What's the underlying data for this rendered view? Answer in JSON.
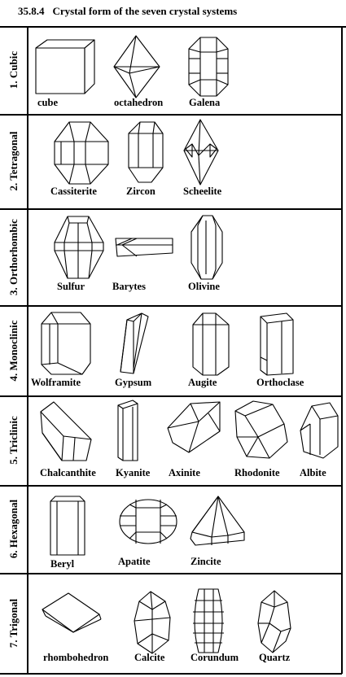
{
  "heading": {
    "number": "35.8.4",
    "title": "Crystal form of the seven crystal systems"
  },
  "systems": [
    {
      "label": "1. Cubic",
      "crystals": [
        "cube",
        "octahedron",
        "Galena"
      ]
    },
    {
      "label": "2. Tetragonal",
      "crystals": [
        "Cassiterite",
        "Zircon",
        "Scheelite"
      ]
    },
    {
      "label": "3. Orthorhombic",
      "crystals": [
        "Sulfur",
        "Barytes",
        "Olivine"
      ]
    },
    {
      "label": "4. Monoclinic",
      "crystals": [
        "Wolframite",
        "Gypsum",
        "Augite",
        "Orthoclase"
      ]
    },
    {
      "label": "5. Triclinic",
      "crystals": [
        "Chalcanthite",
        "Kyanite",
        "Axinite",
        "Rhodonite",
        "Albite"
      ]
    },
    {
      "label": "6. Hexagonal",
      "crystals": [
        "Beryl",
        "Apatite",
        "Zincite"
      ]
    },
    {
      "label": "7. Trigonal",
      "crystals": [
        "rhombohedron",
        "Calcite",
        "Corundum",
        "Quartz"
      ]
    }
  ]
}
